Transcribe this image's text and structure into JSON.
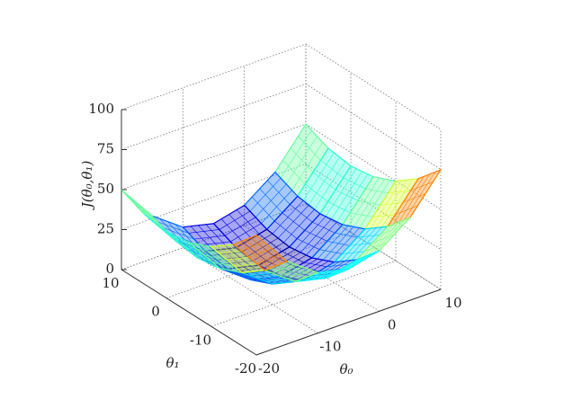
{
  "chart_data": {
    "type": "surface",
    "xlabel": "θ₀",
    "ylabel": "θ₁",
    "zlabel": "J(θ₀,θ₁)",
    "x": [
      -20,
      -15,
      -10,
      -5,
      0,
      5,
      10
    ],
    "y": [
      -20,
      -15,
      -10,
      -5,
      0,
      5,
      10
    ],
    "z": [
      [
        74.8,
        51.7,
        37.8,
        33.2,
        37.8,
        51.7,
        74.8
      ],
      [
        60.3,
        37.2,
        23.3,
        18.7,
        23.3,
        37.2,
        60.3
      ],
      [
        49.9,
        26.8,
        12.9,
        8.3,
        12.9,
        26.8,
        49.9
      ],
      [
        43.7,
        20.6,
        6.7,
        2.1,
        6.7,
        20.6,
        43.7
      ],
      [
        41.6,
        18.5,
        4.6,
        0,
        4.6,
        18.5,
        41.6
      ],
      [
        43.7,
        20.6,
        6.7,
        2.1,
        6.7,
        20.6,
        43.7
      ],
      [
        49.9,
        26.8,
        12.9,
        8.3,
        12.9,
        26.8,
        49.9
      ]
    ],
    "xlim": [
      -20,
      10
    ],
    "ylim": [
      -20,
      10
    ],
    "zlim": [
      0,
      100
    ],
    "xticks": [
      -20,
      -10,
      0,
      10
    ],
    "yticks": [
      -20,
      -10,
      0,
      10
    ],
    "zticks": [
      0,
      25,
      50,
      75,
      100
    ],
    "colormap": "jet",
    "grid": true
  }
}
